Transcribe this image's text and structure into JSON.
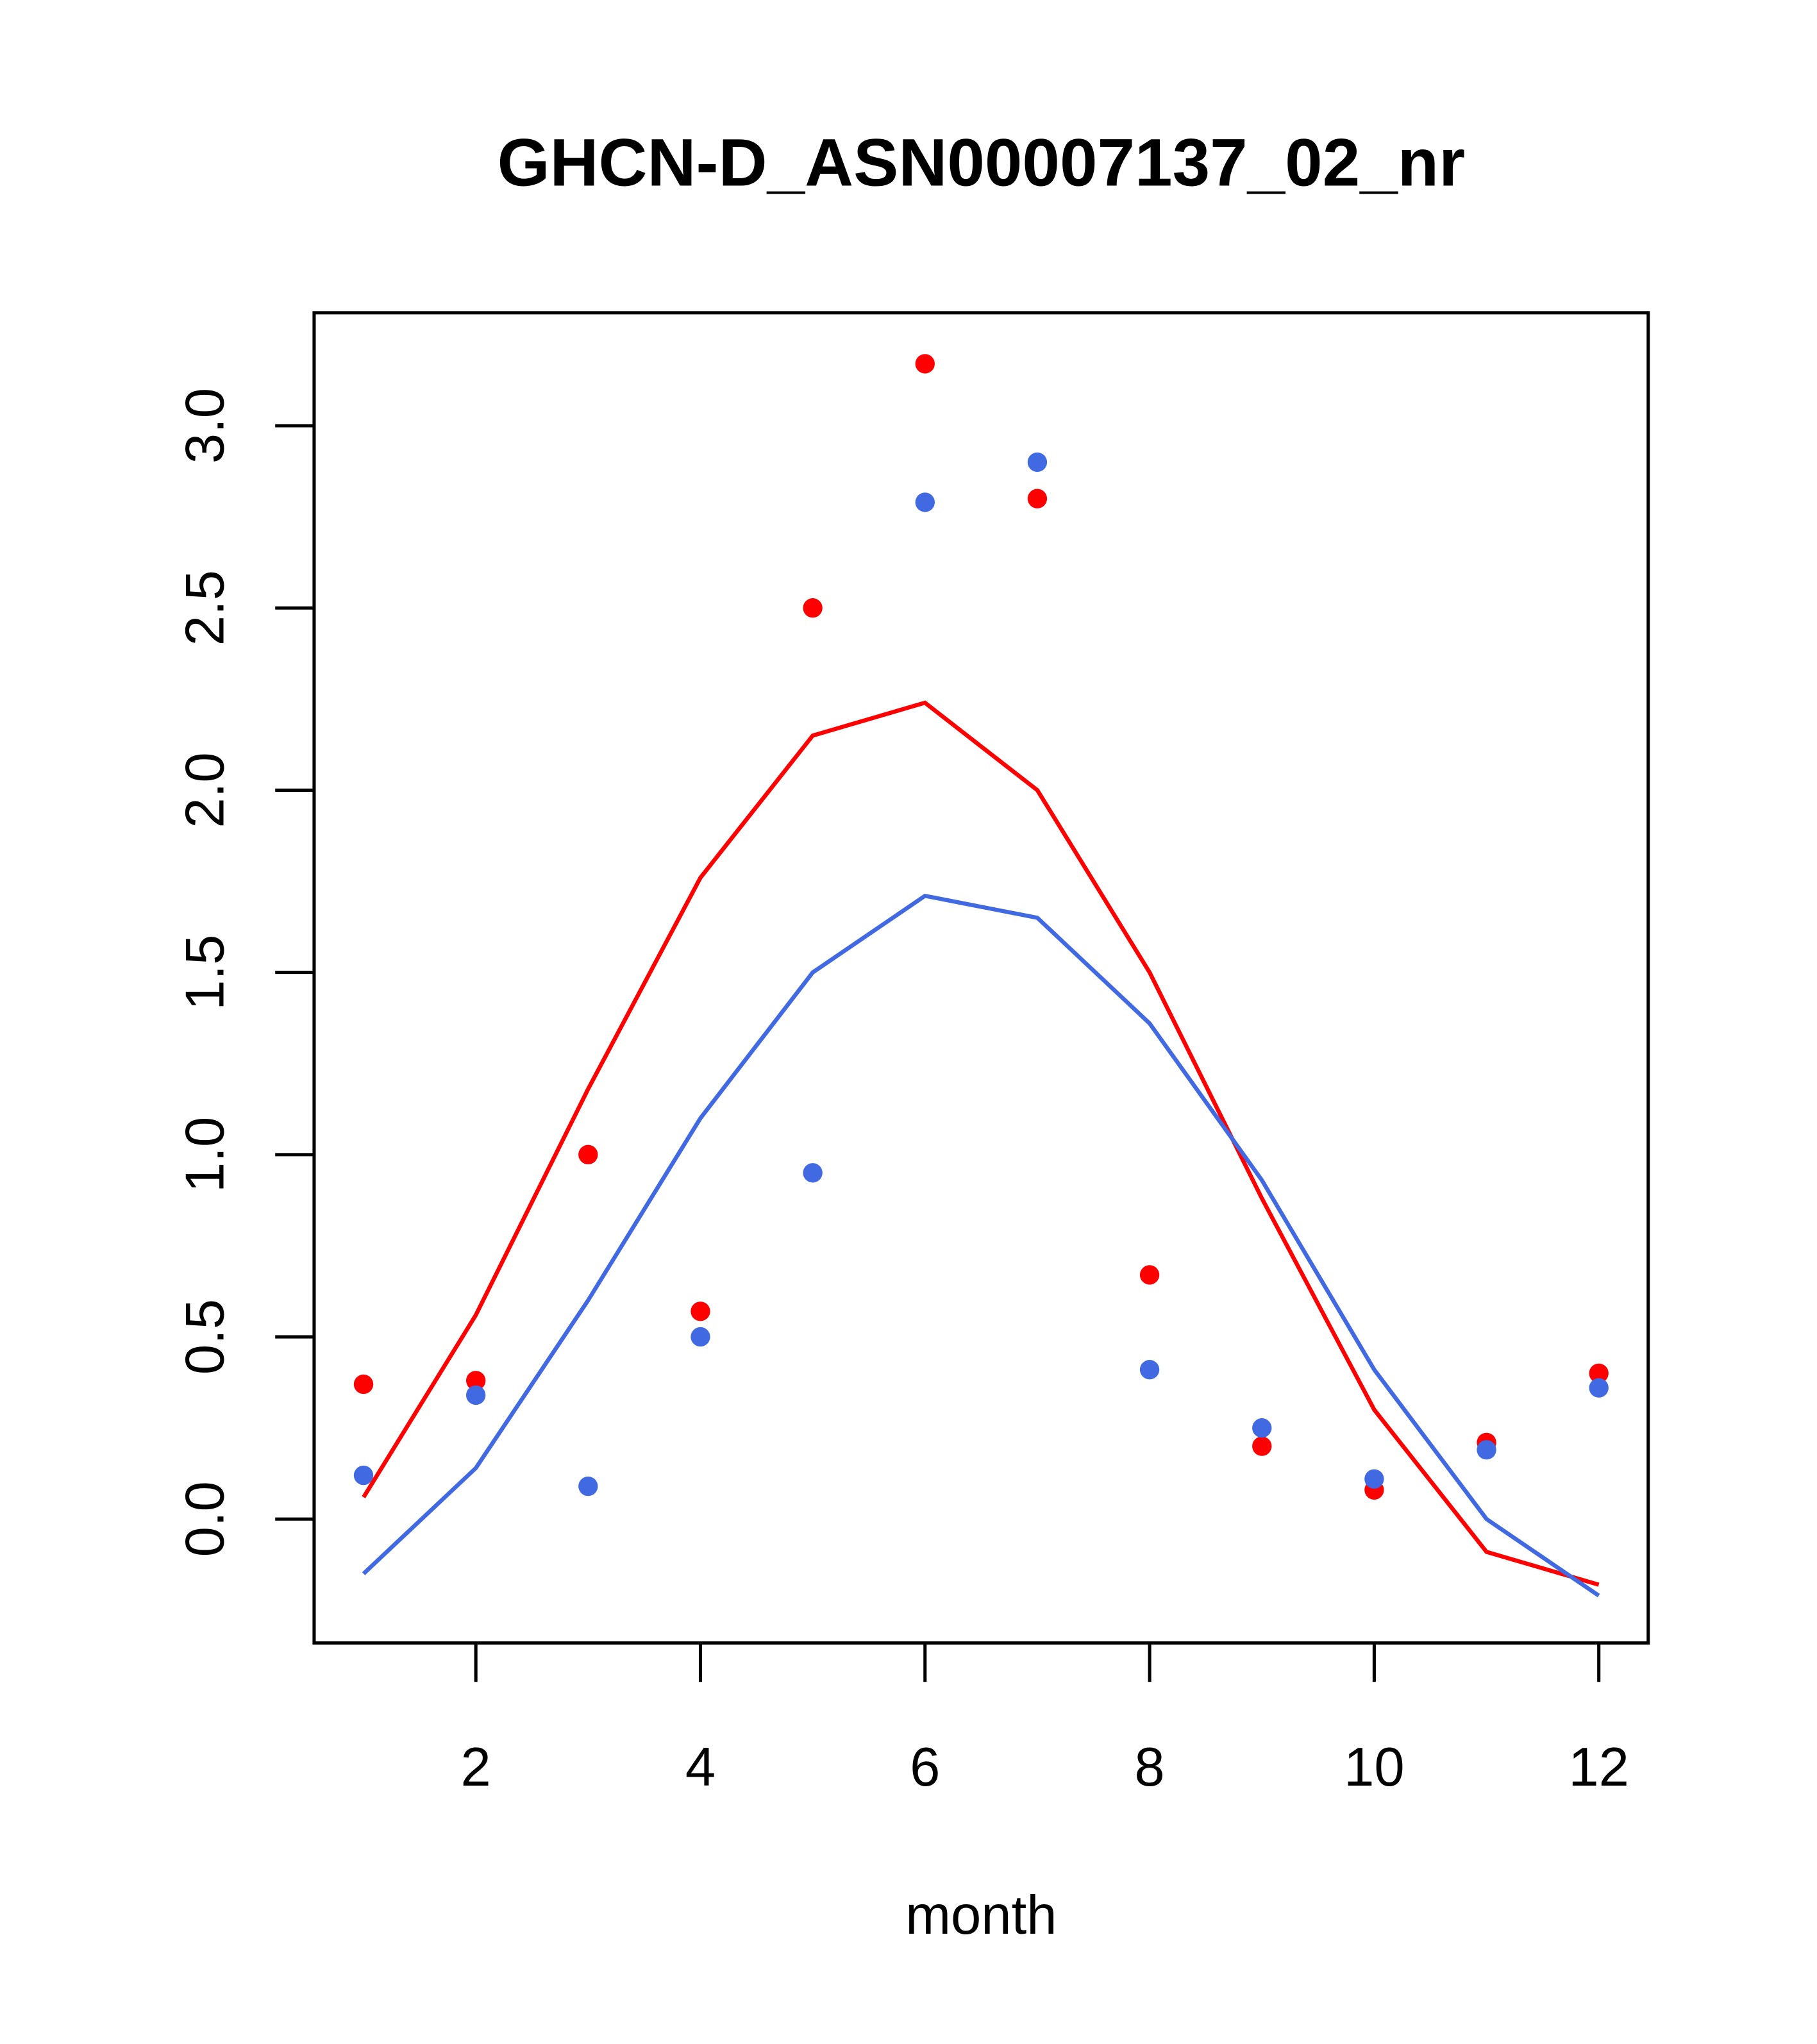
{
  "chart_data": {
    "type": "scatter",
    "title": "GHCN-D_ASN00007137_02_nr",
    "xlabel": "month",
    "ylabel": "",
    "xlim": [
      0.56,
      12.44
    ],
    "ylim": [
      -0.34,
      3.31
    ],
    "x_ticks": [
      2,
      4,
      6,
      8,
      10,
      12
    ],
    "x_tick_labels": [
      "2",
      "4",
      "6",
      "8",
      "10",
      "12"
    ],
    "y_ticks": [
      0,
      0.5,
      1,
      1.5,
      2,
      2.5,
      3
    ],
    "y_tick_labels": [
      "0.0",
      "0.5",
      "1.0",
      "1.5",
      "2.0",
      "2.5",
      "3.0"
    ],
    "grid": false,
    "x": [
      1,
      2,
      3,
      4,
      5,
      6,
      7,
      8,
      9,
      10,
      11,
      12
    ],
    "series": [
      {
        "name": "red points",
        "kind": "points",
        "color": "#ff0000",
        "values": [
          0.37,
          0.38,
          1.0,
          0.57,
          2.5,
          3.17,
          2.8,
          0.67,
          0.2,
          0.08,
          0.21,
          0.4
        ]
      },
      {
        "name": "blue points",
        "kind": "points",
        "color": "#4169e1",
        "values": [
          0.12,
          0.34,
          0.09,
          0.5,
          0.95,
          2.79,
          2.9,
          0.41,
          0.25,
          0.11,
          0.19,
          0.36
        ]
      },
      {
        "name": "red line",
        "kind": "line",
        "color": "#ff0000",
        "values": [
          0.06,
          0.56,
          1.18,
          1.76,
          2.15,
          2.24,
          2.0,
          1.5,
          0.88,
          0.3,
          -0.09,
          -0.18
        ]
      },
      {
        "name": "blue line",
        "kind": "line",
        "color": "#4169e1",
        "values": [
          -0.15,
          0.14,
          0.6,
          1.1,
          1.5,
          1.71,
          1.65,
          1.36,
          0.93,
          0.41,
          0.0,
          -0.21
        ]
      }
    ]
  }
}
